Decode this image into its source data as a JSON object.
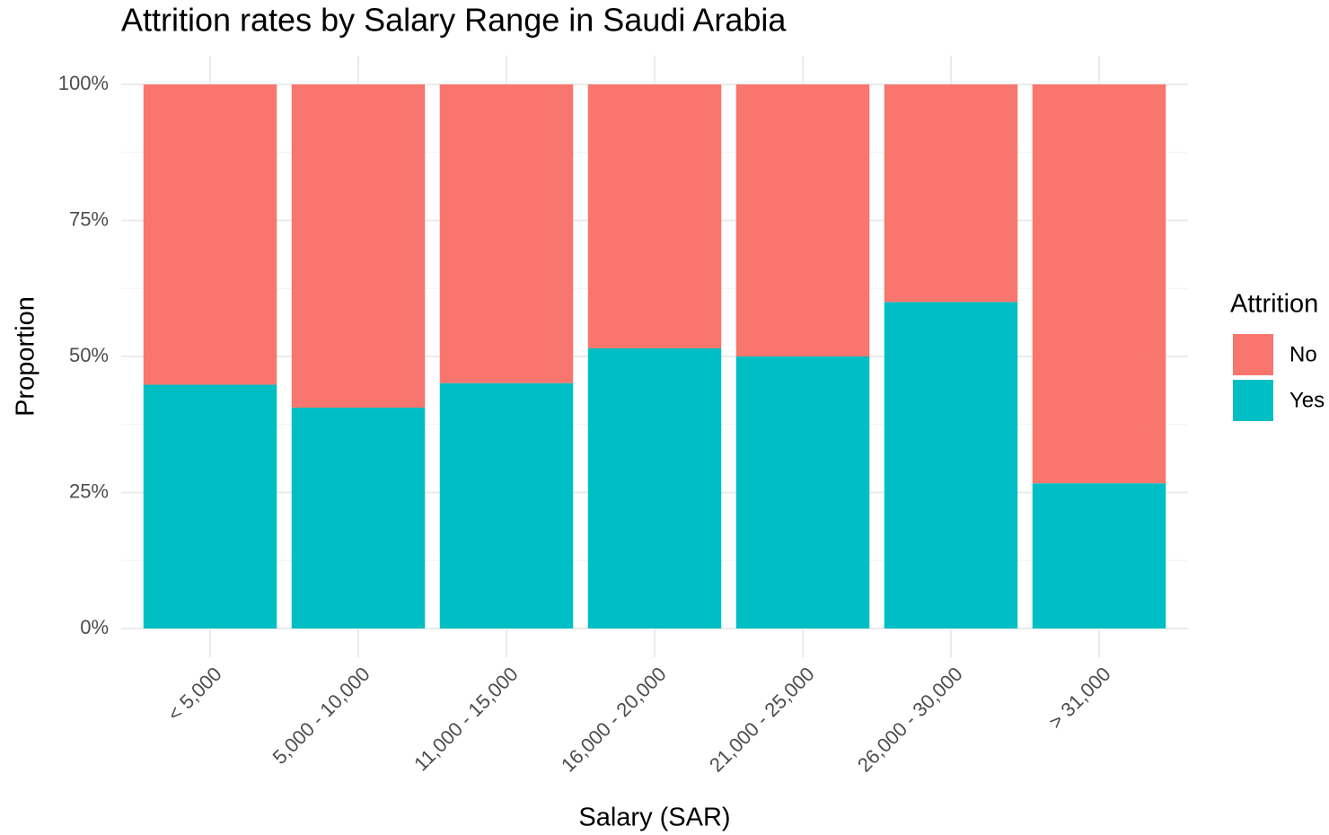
{
  "chart_data": {
    "type": "stacked_bar",
    "title": "Attrition rates by Salary Range in Saudi Arabia",
    "x_label": "Salary (SAR)",
    "y_label": "Proportion",
    "categories": [
      "< 5,000",
      "5,000 - 10,000",
      "11,000 - 15,000",
      "16,000 - 20,000",
      "21,000 - 25,000",
      "26,000 - 30,000",
      "> 31,000"
    ],
    "series": [
      {
        "name": "Yes",
        "color": "#00BFC4",
        "values": [
          44.8,
          40.6,
          45.1,
          51.5,
          50,
          60,
          26.7
        ]
      },
      {
        "name": "No",
        "color": "#F8766D",
        "values": [
          55.2,
          59.4,
          54.9,
          48.5,
          50,
          40,
          73.3
        ]
      }
    ],
    "ylim": [
      0,
      100
    ],
    "yticks": [
      {
        "value": 0,
        "label": "0%"
      },
      {
        "value": 25,
        "label": "25%"
      },
      {
        "value": 50,
        "label": "50%"
      },
      {
        "value": 75,
        "label": "75%"
      },
      {
        "value": 100,
        "label": "100%"
      }
    ],
    "legend_title": "Attrition",
    "legend_position": "right",
    "grid": true
  }
}
